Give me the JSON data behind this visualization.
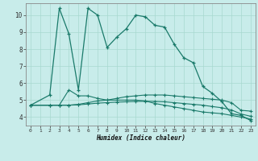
{
  "xlabel": "Humidex (Indice chaleur)",
  "bg_color": "#c8ecea",
  "grid_color": "#a8d8d0",
  "line_color": "#1a7a6a",
  "xlim": [
    -0.5,
    23.5
  ],
  "ylim": [
    3.5,
    10.7
  ],
  "yticks": [
    4,
    5,
    6,
    7,
    8,
    9,
    10
  ],
  "xticks": [
    0,
    1,
    2,
    3,
    4,
    5,
    6,
    7,
    8,
    9,
    10,
    11,
    12,
    13,
    14,
    15,
    16,
    17,
    18,
    19,
    20,
    21,
    22,
    23
  ],
  "line1_x": [
    0,
    2,
    3,
    4,
    5,
    6,
    7,
    8,
    9,
    10,
    11,
    12,
    13,
    14,
    15,
    16,
    17,
    18,
    19,
    20,
    21,
    22,
    23
  ],
  "line1_y": [
    4.7,
    5.3,
    10.4,
    8.9,
    5.6,
    10.4,
    10.0,
    8.1,
    8.7,
    9.2,
    10.0,
    9.9,
    9.4,
    9.3,
    8.3,
    7.5,
    7.2,
    5.8,
    5.4,
    4.9,
    4.2,
    4.1,
    3.8
  ],
  "line2_x": [
    0,
    2,
    3,
    4,
    5,
    6,
    7,
    8,
    9,
    10,
    11,
    12,
    13,
    14,
    15,
    16,
    17,
    18,
    19,
    20,
    21,
    22,
    23
  ],
  "line2_y": [
    4.7,
    4.7,
    4.7,
    5.6,
    5.25,
    5.25,
    5.1,
    5.0,
    5.0,
    5.0,
    5.0,
    4.95,
    4.8,
    4.7,
    4.6,
    4.5,
    4.4,
    4.3,
    4.25,
    4.2,
    4.1,
    4.0,
    3.88
  ],
  "line3_x": [
    0,
    2,
    3,
    4,
    5,
    6,
    7,
    8,
    9,
    10,
    11,
    12,
    13,
    14,
    15,
    16,
    17,
    18,
    19,
    20,
    21,
    22,
    23
  ],
  "line3_y": [
    4.7,
    4.7,
    4.7,
    4.7,
    4.75,
    4.85,
    4.95,
    5.0,
    5.1,
    5.2,
    5.25,
    5.3,
    5.3,
    5.3,
    5.25,
    5.2,
    5.15,
    5.1,
    5.05,
    5.0,
    4.85,
    4.4,
    4.35
  ],
  "line4_x": [
    0,
    2,
    3,
    4,
    5,
    6,
    7,
    8,
    9,
    10,
    11,
    12,
    13,
    14,
    15,
    16,
    17,
    18,
    19,
    20,
    21,
    22,
    23
  ],
  "line4_y": [
    4.7,
    4.7,
    4.7,
    4.7,
    4.72,
    4.77,
    4.82,
    4.85,
    4.88,
    4.9,
    4.92,
    4.93,
    4.92,
    4.9,
    4.85,
    4.8,
    4.75,
    4.7,
    4.62,
    4.55,
    4.42,
    4.18,
    4.05
  ]
}
